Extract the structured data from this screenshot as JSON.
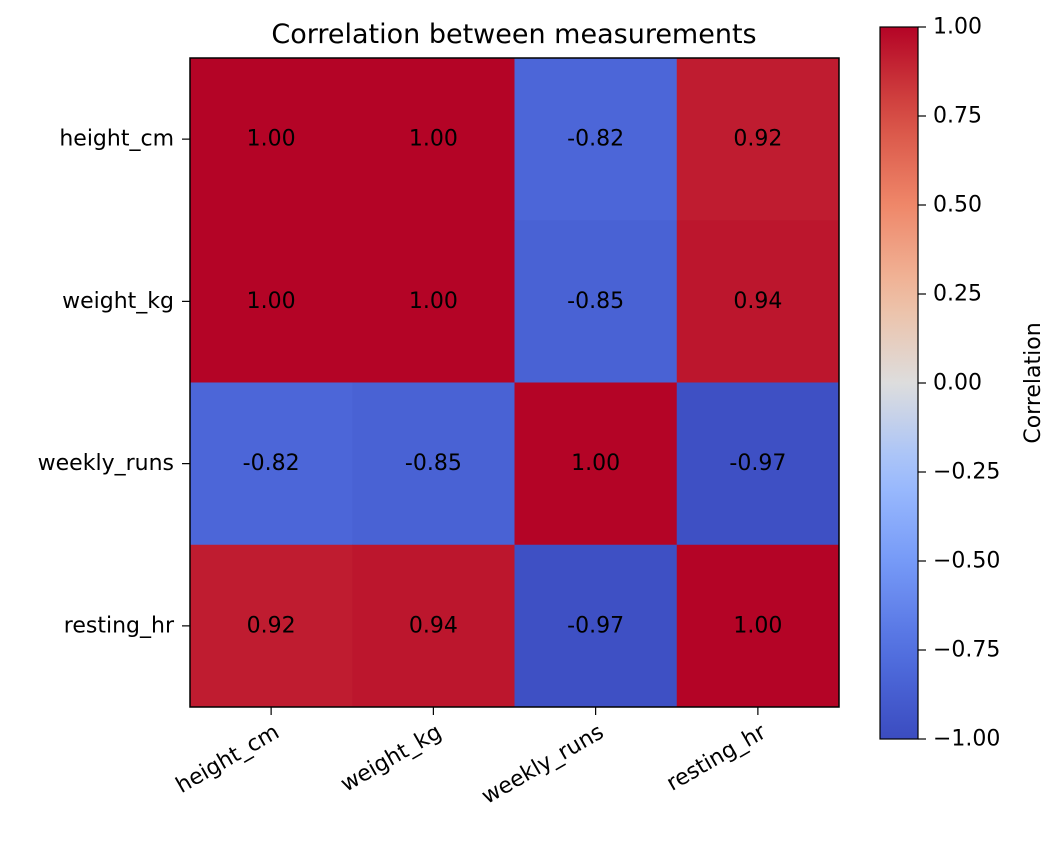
{
  "chart_data": {
    "type": "heatmap",
    "title": "Correlation between measurements",
    "rows": [
      "height_cm",
      "weight_kg",
      "weekly_runs",
      "resting_hr"
    ],
    "columns": [
      "height_cm",
      "weight_kg",
      "weekly_runs",
      "resting_hr"
    ],
    "values": [
      [
        1.0,
        1.0,
        -0.82,
        0.92
      ],
      [
        1.0,
        1.0,
        -0.85,
        0.94
      ],
      [
        -0.82,
        -0.85,
        1.0,
        -0.97
      ],
      [
        0.92,
        0.94,
        -0.97,
        1.0
      ]
    ],
    "cell_labels": [
      [
        "1.00",
        "1.00",
        "-0.82",
        "0.92"
      ],
      [
        "1.00",
        "1.00",
        "-0.85",
        "0.94"
      ],
      [
        "-0.82",
        "-0.85",
        "1.00",
        "-0.97"
      ],
      [
        "0.92",
        "0.94",
        "-0.97",
        "1.00"
      ]
    ],
    "colormap": "coolwarm",
    "vmin": -1.0,
    "vmax": 1.0,
    "colorbar": {
      "label": "Correlation",
      "ticks": [
        1.0,
        0.75,
        0.5,
        0.25,
        0.0,
        -0.25,
        -0.5,
        -0.75,
        -1.0
      ],
      "tick_labels": [
        "1.00",
        "0.75",
        "0.50",
        "0.25",
        "0.00",
        "−0.25",
        "−0.50",
        "−0.75",
        "−1.00"
      ]
    },
    "grid": false,
    "x_tick_rotation": "angled"
  }
}
